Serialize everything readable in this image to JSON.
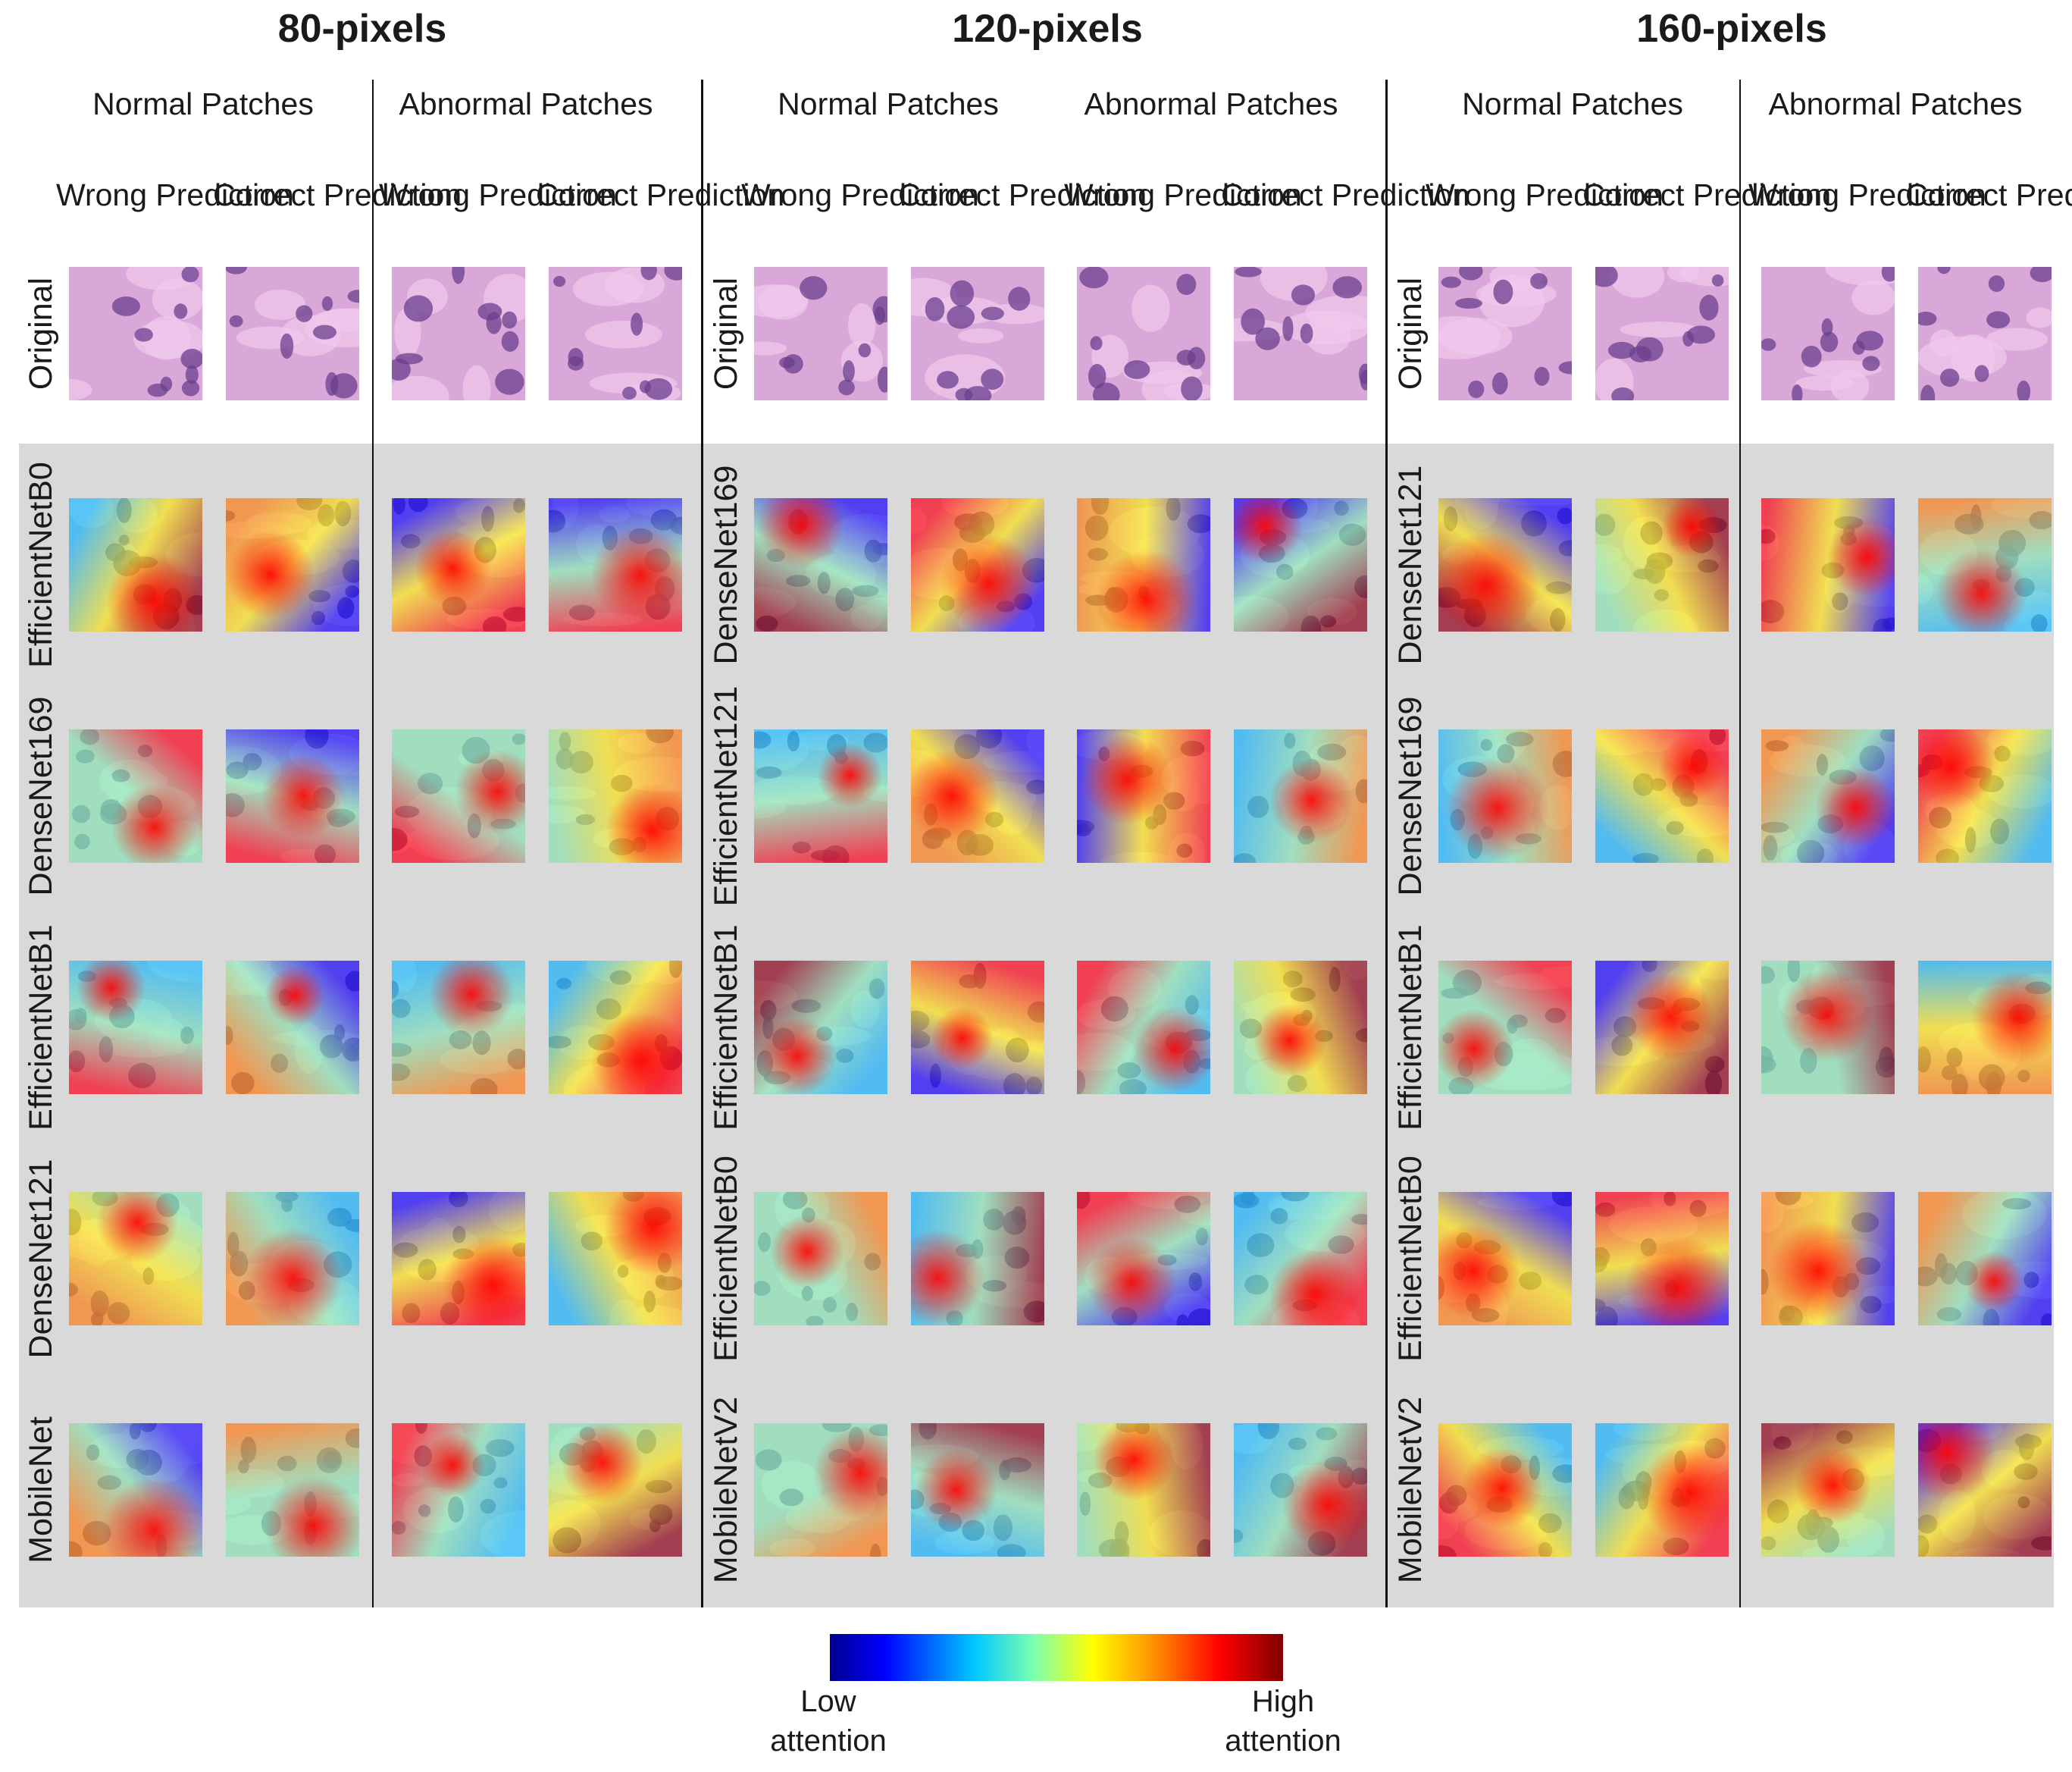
{
  "groups": [
    {
      "title": "80-pixels",
      "models": [
        "EfficientNetB0",
        "DenseNet169",
        "EfficientNetB1",
        "DenseNet121",
        "MobileNet"
      ]
    },
    {
      "title": "120-pixels",
      "models": [
        "DenseNet169",
        "EfficientNet121",
        "EfficientNetB1",
        "EfficientNetB0",
        "MobileNetV2"
      ]
    },
    {
      "title": "160-pixels",
      "models": [
        "DenseNet121",
        "DenseNet169",
        "EfficientNetB1",
        "EfficientNetB0",
        "MobileNetV2"
      ]
    }
  ],
  "patch_types": [
    "Normal Patches",
    "Abnormal Patches"
  ],
  "prediction_types": [
    "Wrong Prediction",
    "Correct Prediction"
  ],
  "original_label": "Original",
  "colorbar": {
    "low_label": "Low attention",
    "high_label": "High attention",
    "colors": [
      "#00008f",
      "#0000ff",
      "#00c8ff",
      "#7dffb0",
      "#ffff00",
      "#ff8c00",
      "#ff0000",
      "#800000"
    ]
  },
  "tissue_colors": {
    "background": "#d9a8d8",
    "nuclei": "#6b3f8f",
    "stroma": "#efc9ec"
  }
}
